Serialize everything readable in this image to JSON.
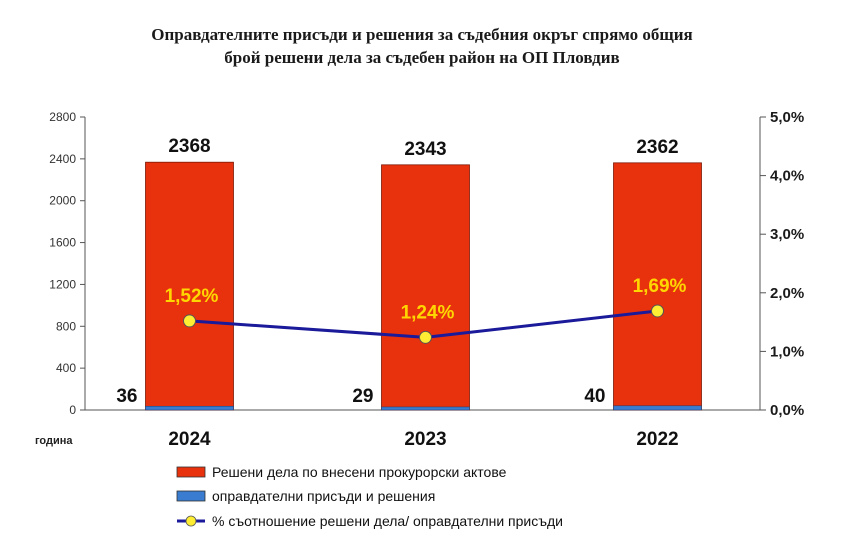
{
  "chart_data": {
    "type": "bar",
    "title_line1": "Оправдателните присъди и решения за съдебния окръг спрямо общия",
    "title_line2": "брой решени дела за съдебен район на ОП Пловдив",
    "xlabel": "година",
    "categories": [
      "2024",
      "2023",
      "2022"
    ],
    "ylim": [
      0,
      2800
    ],
    "yticks": [
      "0",
      "400",
      "800",
      "1200",
      "1600",
      "2000",
      "2400",
      "2800"
    ],
    "y2lim": [
      0,
      5.0
    ],
    "y2ticks": [
      "0,0%",
      "1,0%",
      "2,0%",
      "3,0%",
      "4,0%",
      "5,0%"
    ],
    "series": [
      {
        "name": "Решени дела по внесени прокурорски актове",
        "kind": "bar",
        "axis": "left",
        "color": "#e8320e",
        "values": [
          2368,
          2343,
          2362
        ],
        "labels": [
          "2368",
          "2343",
          "2362"
        ]
      },
      {
        "name": "оправдателни присъди и решения",
        "kind": "bar",
        "axis": "left",
        "color": "#3a7dd0",
        "values": [
          36,
          29,
          40
        ],
        "labels": [
          "36",
          "29",
          "40"
        ]
      },
      {
        "name": "% съотношение решени дела/ оправдателни присъди",
        "kind": "line",
        "axis": "right",
        "color": "#1a1a9a",
        "marker_color": "#ffee33",
        "values": [
          1.52,
          1.24,
          1.69
        ],
        "labels": [
          "1,52%",
          "1,24%",
          "1,69%"
        ]
      }
    ],
    "legend_position": "bottom",
    "grid": false
  }
}
